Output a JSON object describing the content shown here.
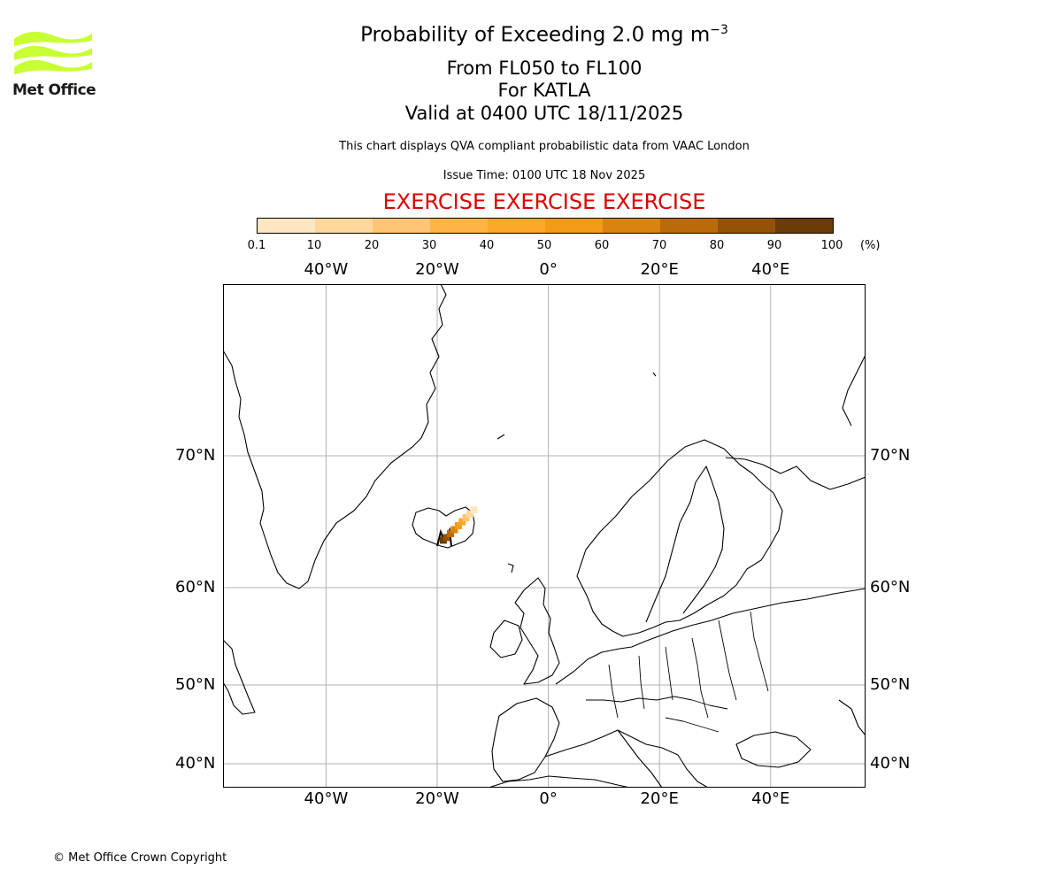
{
  "logo": {
    "text": "Met Office",
    "icon": "met-office-wave-logo",
    "color": "#c8ff32"
  },
  "header": {
    "title_main": "Probability of Exceeding 2.0 mg m",
    "title_sup": "−3",
    "level_range": "From FL050 to FL100",
    "volcano": "For KATLA",
    "valid_time": "Valid at 0400 UTC 18/11/2025",
    "disclaimer": "This chart displays QVA compliant probabilistic data from VAAC London",
    "issue_time": "Issue Time: 0100 UTC 18 Nov 2025",
    "exercise_banner": "EXERCISE EXERCISE EXERCISE",
    "exercise_color": "#dd0000"
  },
  "colorbar": {
    "labels": [
      "0.1",
      "10",
      "20",
      "30",
      "40",
      "50",
      "60",
      "70",
      "80",
      "90",
      "100"
    ],
    "unit": "(%)",
    "colors": [
      "#fff6e6",
      "#ffe6c2",
      "#ffd79e",
      "#ffc575",
      "#ffb445",
      "#fca828",
      "#f39b19",
      "#d98411",
      "#bb6a09",
      "#945205",
      "#6a3c06"
    ]
  },
  "map": {
    "lon_labels": [
      "40°W",
      "20°W",
      "0°",
      "20°E",
      "40°E"
    ],
    "lon_values": [
      -40,
      -20,
      0,
      20,
      40
    ],
    "lat_labels": [
      "70°N",
      "60°N",
      "50°N",
      "40°N"
    ],
    "lat_values": [
      70,
      60,
      50,
      40
    ],
    "volcano_name": "KATLA",
    "ash_cells": [
      {
        "lon": -18.9,
        "lat": 63.6,
        "prob": 95
      },
      {
        "lon": -18.3,
        "lat": 63.8,
        "prob": 85
      },
      {
        "lon": -17.6,
        "lat": 64.1,
        "prob": 75
      },
      {
        "lon": -16.9,
        "lat": 64.4,
        "prob": 65
      },
      {
        "lon": -16.2,
        "lat": 64.7,
        "prob": 55
      },
      {
        "lon": -15.5,
        "lat": 65.0,
        "prob": 45
      },
      {
        "lon": -14.8,
        "lat": 65.3,
        "prob": 30
      },
      {
        "lon": -14.1,
        "lat": 65.6,
        "prob": 20
      },
      {
        "lon": -13.4,
        "lat": 65.9,
        "prob": 8
      }
    ]
  },
  "footer": {
    "copyright": "© Met Office Crown Copyright"
  }
}
